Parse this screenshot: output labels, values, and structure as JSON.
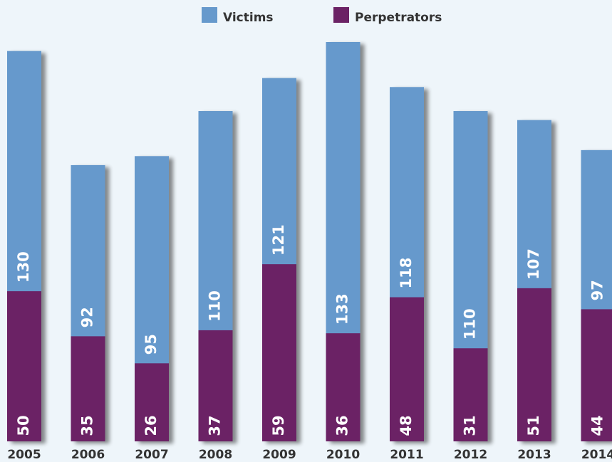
{
  "chart_data": {
    "type": "bar",
    "mode": "overlay",
    "categories": [
      "2005",
      "2006",
      "2007",
      "2008",
      "2009",
      "2010",
      "2011",
      "2012",
      "2013",
      "2014"
    ],
    "series": [
      {
        "name": "Victims",
        "color": "#6699cc",
        "values": [
          130,
          92,
          95,
          110,
          121,
          133,
          118,
          110,
          107,
          97
        ]
      },
      {
        "name": "Perpetrators",
        "color": "#6b2265",
        "values": [
          50,
          35,
          26,
          37,
          59,
          36,
          48,
          31,
          51,
          44
        ]
      }
    ],
    "legend": "top"
  }
}
